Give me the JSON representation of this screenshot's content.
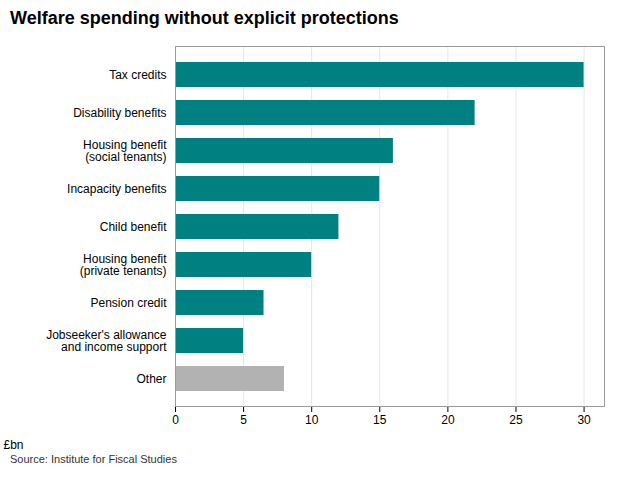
{
  "chart_data": {
    "type": "bar",
    "orientation": "horizontal",
    "title": "Welfare spending without explicit protections",
    "xlabel": "£bn",
    "source": "Source: Institute for Fiscal Studies",
    "categories": [
      "Other",
      "Jobseeker's allowance\nand income support",
      "Pension credit",
      "Housing benefit\n(private tenants)",
      "Child benefit",
      "Incapacity benefits",
      "Housing benefit\n(social tenants)",
      "Disability benefits",
      "Tax credits"
    ],
    "values": [
      8,
      5,
      6.5,
      10,
      12,
      15,
      16,
      22,
      30
    ],
    "colors": [
      "#b2b2b2",
      "#008080",
      "#008080",
      "#008080",
      "#008080",
      "#008080",
      "#008080",
      "#008080",
      "#008080"
    ],
    "xlim": [
      0,
      31.5
    ],
    "xticks": [
      0,
      5,
      10,
      15,
      20,
      25,
      30
    ],
    "grid": true
  }
}
